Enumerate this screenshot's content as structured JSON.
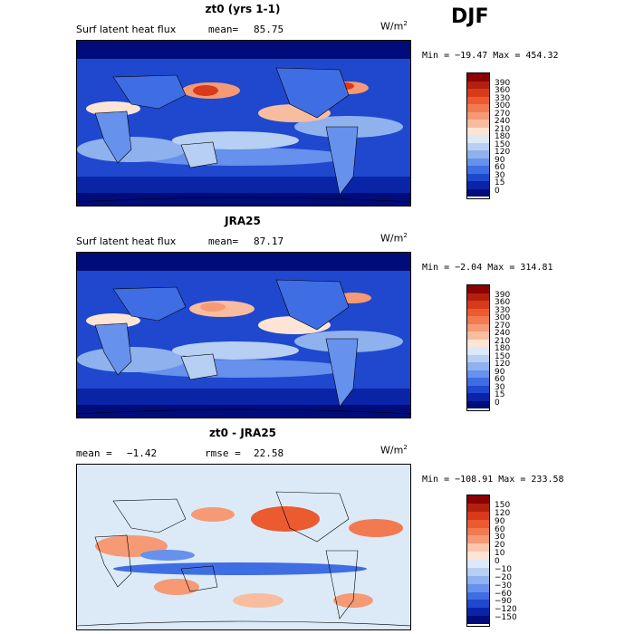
{
  "season": "DJF",
  "panels": [
    {
      "title": "zt0 (yrs 1-1)",
      "left_label": "Surf latent heat flux",
      "stat_label": "mean=",
      "stat_value": "85.75",
      "units": "W/m",
      "units_sup": "2",
      "minmax": "Min = −19.47 Max = 454.32"
    },
    {
      "title": "JRA25",
      "left_label": "Surf latent heat flux",
      "stat_label": "mean=",
      "stat_value": "87.17",
      "units": "W/m",
      "units_sup": "2",
      "minmax": "Min = −2.04 Max = 314.81"
    },
    {
      "title": "zt0 - JRA25",
      "left_label": "mean =",
      "left_value": "−1.42",
      "stat_label": "rmse =",
      "stat_value": "22.58",
      "units": "W/m",
      "units_sup": "2",
      "minmax": "Min = −108.91 Max = 233.58"
    }
  ],
  "colorbars": {
    "abs_levels": [
      "390",
      "360",
      "330",
      "300",
      "270",
      "240",
      "210",
      "180",
      "150",
      "120",
      "90",
      "60",
      "30",
      "15",
      "0"
    ],
    "abs_colors": [
      "#8b0000",
      "#b3200e",
      "#d83a1a",
      "#ec5a2f",
      "#f27a50",
      "#f59a74",
      "#f8bd9f",
      "#fde4d4",
      "#dceaf8",
      "#b6cff2",
      "#8fb2ee",
      "#6691ec",
      "#3f6de3",
      "#1f48cf",
      "#0a24a8",
      "#000c7a"
    ],
    "diff_levels": [
      "150",
      "120",
      "90",
      "60",
      "30",
      "20",
      "10",
      "0",
      "−10",
      "−20",
      "−30",
      "−60",
      "−90",
      "−120",
      "−150"
    ],
    "diff_colors": [
      "#8b0000",
      "#b3200e",
      "#d83a1a",
      "#ec5a2f",
      "#f27a50",
      "#f59a74",
      "#fbc6ad",
      "#fde4d4",
      "#dceaf8",
      "#b6cff2",
      "#8fb2ee",
      "#6691ec",
      "#3f6de3",
      "#1f48cf",
      "#0a24a8",
      "#000c7a"
    ]
  }
}
